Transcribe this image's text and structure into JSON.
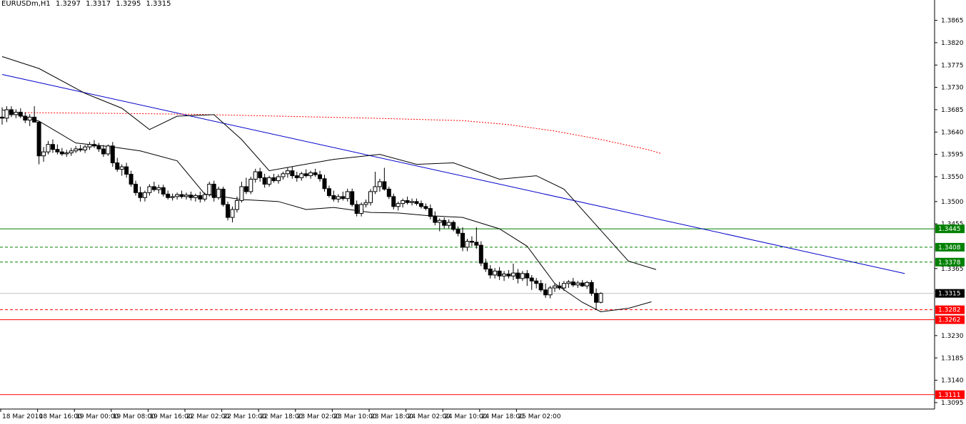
{
  "header": {
    "symbol": "EURUSDm,H1",
    "open": "1.3297",
    "high": "1.3317",
    "low": "1.3295",
    "close": "1.3315"
  },
  "chart_data": {
    "type": "candlestick",
    "symbol": "EURUSDm",
    "timeframe": "H1",
    "ylim": [
      1.3082,
      1.3906
    ],
    "y_ticks": [
      "1.3865",
      "1.3820",
      "1.3775",
      "1.3730",
      "1.3685",
      "1.3640",
      "1.3595",
      "1.3550",
      "1.3500",
      "1.3455",
      "1.3365",
      "1.3230",
      "1.3185",
      "1.3140",
      "1.3095"
    ],
    "x_ticks": [
      "18 Mar 2010",
      "18 Mar 16:00",
      "19 Mar 00:00",
      "19 Mar 08:00",
      "19 Mar 16:00",
      "22 Mar 02:00",
      "22 Mar 10:00",
      "22 Mar 18:00",
      "23 Mar 02:00",
      "23 Mar 10:00",
      "23 Mar 18:00",
      "24 Mar 02:00",
      "24 Mar 10:00",
      "24 Mar 18:00",
      "25 Mar 02:00"
    ],
    "horizontal_lines": [
      {
        "price": 1.3445,
        "label": "1.3445",
        "color": "#008000",
        "style": "solid"
      },
      {
        "price": 1.3408,
        "label": "1.3408",
        "color": "#008000",
        "style": "dashed"
      },
      {
        "price": 1.3378,
        "label": "1.3378",
        "color": "#008000",
        "style": "dashed"
      },
      {
        "price": 1.3282,
        "label": "1.3282",
        "color": "#ff0000",
        "style": "dashed"
      },
      {
        "price": 1.3262,
        "label": "1.3262",
        "color": "#ff0000",
        "style": "solid"
      },
      {
        "price": 1.3111,
        "label": "1.3111",
        "color": "#ff0000",
        "style": "solid"
      }
    ],
    "current_price": {
      "price": 1.3315,
      "label": "1.3315"
    },
    "trendline": {
      "start": {
        "bar": 0,
        "price": 1.3756
      },
      "end": {
        "bar": 196,
        "price": 1.3355
      },
      "color": "#0000cc"
    },
    "moving_average": {
      "color": "#ff0000",
      "style": "dotted",
      "points": [
        [
          5,
          1.3679
        ],
        [
          20,
          1.3678
        ],
        [
          40,
          1.3676
        ],
        [
          60,
          1.3672
        ],
        [
          80,
          1.3668
        ],
        [
          100,
          1.3663
        ],
        [
          110,
          1.3655
        ],
        [
          120,
          1.3642
        ],
        [
          130,
          1.3625
        ],
        [
          140,
          1.3605
        ],
        [
          143,
          1.3597
        ]
      ]
    },
    "bollinger_upper": [
      [
        0,
        1.3792
      ],
      [
        8,
        1.3768
      ],
      [
        18,
        1.3718
      ],
      [
        26,
        1.3688
      ],
      [
        32,
        1.3645
      ],
      [
        38,
        1.3672
      ],
      [
        46,
        1.3675
      ],
      [
        52,
        1.3625
      ],
      [
        58,
        1.3562
      ],
      [
        64,
        1.3572
      ],
      [
        72,
        1.3585
      ],
      [
        82,
        1.3595
      ],
      [
        90,
        1.3575
      ],
      [
        98,
        1.3578
      ],
      [
        108,
        1.3545
      ],
      [
        116,
        1.3552
      ],
      [
        122,
        1.3525
      ],
      [
        130,
        1.3442
      ],
      [
        136,
        1.338
      ],
      [
        142,
        1.3363
      ]
    ],
    "bollinger_lower": [
      [
        0,
        1.3685
      ],
      [
        8,
        1.3662
      ],
      [
        16,
        1.3618
      ],
      [
        24,
        1.361
      ],
      [
        30,
        1.3602
      ],
      [
        38,
        1.3582
      ],
      [
        44,
        1.3515
      ],
      [
        52,
        1.3504
      ],
      [
        60,
        1.35
      ],
      [
        66,
        1.3484
      ],
      [
        72,
        1.3488
      ],
      [
        80,
        1.3478
      ],
      [
        86,
        1.3477
      ],
      [
        92,
        1.3472
      ],
      [
        100,
        1.3468
      ],
      [
        108,
        1.3445
      ],
      [
        114,
        1.341
      ],
      [
        120,
        1.3335
      ],
      [
        126,
        1.3297
      ],
      [
        130,
        1.3278
      ],
      [
        136,
        1.3285
      ],
      [
        141,
        1.3298
      ]
    ],
    "candles": [
      {
        "o": 1.367,
        "h": 1.369,
        "l": 1.3655,
        "c": 1.3668
      },
      {
        "o": 1.3668,
        "h": 1.3692,
        "l": 1.366,
        "c": 1.3685
      },
      {
        "o": 1.3685,
        "h": 1.3692,
        "l": 1.367,
        "c": 1.3675
      },
      {
        "o": 1.3675,
        "h": 1.3686,
        "l": 1.3668,
        "c": 1.368
      },
      {
        "o": 1.368,
        "h": 1.3688,
        "l": 1.3668,
        "c": 1.3672
      },
      {
        "o": 1.3672,
        "h": 1.368,
        "l": 1.3658,
        "c": 1.3664
      },
      {
        "o": 1.3664,
        "h": 1.3676,
        "l": 1.3652,
        "c": 1.367
      },
      {
        "o": 1.367,
        "h": 1.3692,
        "l": 1.3665,
        "c": 1.366
      },
      {
        "o": 1.366,
        "h": 1.3662,
        "l": 1.3575,
        "c": 1.3592
      },
      {
        "o": 1.3592,
        "h": 1.361,
        "l": 1.358,
        "c": 1.36
      },
      {
        "o": 1.36,
        "h": 1.3622,
        "l": 1.3595,
        "c": 1.3615
      },
      {
        "o": 1.3615,
        "h": 1.3625,
        "l": 1.3598,
        "c": 1.3605
      },
      {
        "o": 1.3605,
        "h": 1.3615,
        "l": 1.3595,
        "c": 1.36
      },
      {
        "o": 1.36,
        "h": 1.3608,
        "l": 1.3592,
        "c": 1.3596
      },
      {
        "o": 1.3596,
        "h": 1.3604,
        "l": 1.359,
        "c": 1.3598
      },
      {
        "o": 1.3598,
        "h": 1.3608,
        "l": 1.3592,
        "c": 1.3602
      },
      {
        "o": 1.3602,
        "h": 1.3612,
        "l": 1.3598,
        "c": 1.3606
      },
      {
        "o": 1.3606,
        "h": 1.3614,
        "l": 1.36,
        "c": 1.3604
      },
      {
        "o": 1.3604,
        "h": 1.3614,
        "l": 1.3598,
        "c": 1.361
      },
      {
        "o": 1.361,
        "h": 1.362,
        "l": 1.3604,
        "c": 1.3615
      },
      {
        "o": 1.3615,
        "h": 1.3624,
        "l": 1.3608,
        "c": 1.3612
      },
      {
        "o": 1.3612,
        "h": 1.3618,
        "l": 1.36,
        "c": 1.3606
      },
      {
        "o": 1.3606,
        "h": 1.3614,
        "l": 1.359,
        "c": 1.3596
      },
      {
        "o": 1.3596,
        "h": 1.3615,
        "l": 1.3592,
        "c": 1.3612
      },
      {
        "o": 1.3612,
        "h": 1.362,
        "l": 1.357,
        "c": 1.3578
      },
      {
        "o": 1.3578,
        "h": 1.3588,
        "l": 1.356,
        "c": 1.3565
      },
      {
        "o": 1.3565,
        "h": 1.3575,
        "l": 1.3552,
        "c": 1.357
      },
      {
        "o": 1.357,
        "h": 1.3578,
        "l": 1.3548,
        "c": 1.3555
      },
      {
        "o": 1.3555,
        "h": 1.3562,
        "l": 1.353,
        "c": 1.3535
      },
      {
        "o": 1.3535,
        "h": 1.3542,
        "l": 1.3512,
        "c": 1.3518
      },
      {
        "o": 1.3518,
        "h": 1.353,
        "l": 1.35,
        "c": 1.3508
      },
      {
        "o": 1.3508,
        "h": 1.3522,
        "l": 1.35,
        "c": 1.3518
      },
      {
        "o": 1.3518,
        "h": 1.3535,
        "l": 1.3512,
        "c": 1.353
      },
      {
        "o": 1.353,
        "h": 1.354,
        "l": 1.352,
        "c": 1.3524
      },
      {
        "o": 1.3524,
        "h": 1.3534,
        "l": 1.3516,
        "c": 1.3528
      },
      {
        "o": 1.3528,
        "h": 1.3534,
        "l": 1.351,
        "c": 1.3515
      },
      {
        "o": 1.3515,
        "h": 1.3522,
        "l": 1.3504,
        "c": 1.3508
      },
      {
        "o": 1.3508,
        "h": 1.3516,
        "l": 1.3502,
        "c": 1.351
      },
      {
        "o": 1.351,
        "h": 1.3518,
        "l": 1.3504,
        "c": 1.3514
      },
      {
        "o": 1.3514,
        "h": 1.3522,
        "l": 1.3506,
        "c": 1.351
      },
      {
        "o": 1.351,
        "h": 1.3518,
        "l": 1.3504,
        "c": 1.3513
      },
      {
        "o": 1.3513,
        "h": 1.352,
        "l": 1.3502,
        "c": 1.3508
      },
      {
        "o": 1.3508,
        "h": 1.3516,
        "l": 1.35,
        "c": 1.3512
      },
      {
        "o": 1.3512,
        "h": 1.352,
        "l": 1.3498,
        "c": 1.3505
      },
      {
        "o": 1.3505,
        "h": 1.3518,
        "l": 1.35,
        "c": 1.3514
      },
      {
        "o": 1.3514,
        "h": 1.354,
        "l": 1.351,
        "c": 1.3535
      },
      {
        "o": 1.3535,
        "h": 1.3542,
        "l": 1.35,
        "c": 1.3508
      },
      {
        "o": 1.3508,
        "h": 1.353,
        "l": 1.3504,
        "c": 1.3525
      },
      {
        "o": 1.3525,
        "h": 1.353,
        "l": 1.349,
        "c": 1.3494
      },
      {
        "o": 1.3494,
        "h": 1.35,
        "l": 1.3462,
        "c": 1.3468
      },
      {
        "o": 1.3468,
        "h": 1.349,
        "l": 1.3458,
        "c": 1.3484
      },
      {
        "o": 1.3484,
        "h": 1.351,
        "l": 1.3478,
        "c": 1.3502
      },
      {
        "o": 1.3502,
        "h": 1.354,
        "l": 1.3498,
        "c": 1.353
      },
      {
        "o": 1.353,
        "h": 1.3548,
        "l": 1.3515,
        "c": 1.352
      },
      {
        "o": 1.352,
        "h": 1.355,
        "l": 1.3515,
        "c": 1.3545
      },
      {
        "o": 1.3545,
        "h": 1.3566,
        "l": 1.3538,
        "c": 1.356
      },
      {
        "o": 1.356,
        "h": 1.3568,
        "l": 1.354,
        "c": 1.3548
      },
      {
        "o": 1.3548,
        "h": 1.3556,
        "l": 1.3528,
        "c": 1.3535
      },
      {
        "o": 1.3535,
        "h": 1.3552,
        "l": 1.353,
        "c": 1.3548
      },
      {
        "o": 1.3548,
        "h": 1.3556,
        "l": 1.3538,
        "c": 1.3542
      },
      {
        "o": 1.3542,
        "h": 1.3555,
        "l": 1.3536,
        "c": 1.355
      },
      {
        "o": 1.355,
        "h": 1.356,
        "l": 1.3544,
        "c": 1.3556
      },
      {
        "o": 1.3556,
        "h": 1.3568,
        "l": 1.3548,
        "c": 1.3562
      },
      {
        "o": 1.3562,
        "h": 1.357,
        "l": 1.3546,
        "c": 1.3552
      },
      {
        "o": 1.3552,
        "h": 1.356,
        "l": 1.354,
        "c": 1.3548
      },
      {
        "o": 1.3548,
        "h": 1.356,
        "l": 1.3542,
        "c": 1.3556
      },
      {
        "o": 1.3556,
        "h": 1.3565,
        "l": 1.3548,
        "c": 1.3552
      },
      {
        "o": 1.3552,
        "h": 1.3562,
        "l": 1.3546,
        "c": 1.3558
      },
      {
        "o": 1.3558,
        "h": 1.3566,
        "l": 1.355,
        "c": 1.3554
      },
      {
        "o": 1.3554,
        "h": 1.3562,
        "l": 1.354,
        "c": 1.3546
      },
      {
        "o": 1.3546,
        "h": 1.3554,
        "l": 1.352,
        "c": 1.3526
      },
      {
        "o": 1.3526,
        "h": 1.3532,
        "l": 1.3508,
        "c": 1.3512
      },
      {
        "o": 1.3512,
        "h": 1.3522,
        "l": 1.35,
        "c": 1.3505
      },
      {
        "o": 1.3505,
        "h": 1.3515,
        "l": 1.3498,
        "c": 1.351
      },
      {
        "o": 1.351,
        "h": 1.352,
        "l": 1.3502,
        "c": 1.3506
      },
      {
        "o": 1.3506,
        "h": 1.3526,
        "l": 1.35,
        "c": 1.352
      },
      {
        "o": 1.352,
        "h": 1.3526,
        "l": 1.349,
        "c": 1.3494
      },
      {
        "o": 1.3494,
        "h": 1.3502,
        "l": 1.347,
        "c": 1.3476
      },
      {
        "o": 1.3476,
        "h": 1.3498,
        "l": 1.347,
        "c": 1.3494
      },
      {
        "o": 1.3494,
        "h": 1.3504,
        "l": 1.3488,
        "c": 1.3498
      },
      {
        "o": 1.3498,
        "h": 1.3525,
        "l": 1.3492,
        "c": 1.352
      },
      {
        "o": 1.352,
        "h": 1.356,
        "l": 1.3515,
        "c": 1.353
      },
      {
        "o": 1.353,
        "h": 1.3546,
        "l": 1.352,
        "c": 1.354
      },
      {
        "o": 1.354,
        "h": 1.3568,
        "l": 1.3522,
        "c": 1.3525
      },
      {
        "o": 1.3525,
        "h": 1.353,
        "l": 1.3505,
        "c": 1.351
      },
      {
        "o": 1.351,
        "h": 1.3516,
        "l": 1.3484,
        "c": 1.349
      },
      {
        "o": 1.349,
        "h": 1.35,
        "l": 1.3482,
        "c": 1.3496
      },
      {
        "o": 1.3496,
        "h": 1.3506,
        "l": 1.3488,
        "c": 1.3502
      },
      {
        "o": 1.3502,
        "h": 1.351,
        "l": 1.3494,
        "c": 1.3498
      },
      {
        "o": 1.3498,
        "h": 1.3506,
        "l": 1.3492,
        "c": 1.35
      },
      {
        "o": 1.35,
        "h": 1.3506,
        "l": 1.3492,
        "c": 1.3496
      },
      {
        "o": 1.3496,
        "h": 1.3502,
        "l": 1.3486,
        "c": 1.349
      },
      {
        "o": 1.349,
        "h": 1.3496,
        "l": 1.3482,
        "c": 1.3486
      },
      {
        "o": 1.3486,
        "h": 1.3494,
        "l": 1.3464,
        "c": 1.347
      },
      {
        "o": 1.347,
        "h": 1.348,
        "l": 1.3452,
        "c": 1.3458
      },
      {
        "o": 1.3458,
        "h": 1.3466,
        "l": 1.344,
        "c": 1.3462
      },
      {
        "o": 1.3462,
        "h": 1.3468,
        "l": 1.3446,
        "c": 1.3452
      },
      {
        "o": 1.3452,
        "h": 1.3464,
        "l": 1.3446,
        "c": 1.3458
      },
      {
        "o": 1.3458,
        "h": 1.3462,
        "l": 1.344,
        "c": 1.3444
      },
      {
        "o": 1.3444,
        "h": 1.345,
        "l": 1.343,
        "c": 1.3436
      },
      {
        "o": 1.3436,
        "h": 1.3448,
        "l": 1.34,
        "c": 1.3408
      },
      {
        "o": 1.3408,
        "h": 1.3425,
        "l": 1.34,
        "c": 1.342
      },
      {
        "o": 1.342,
        "h": 1.343,
        "l": 1.341,
        "c": 1.3418
      },
      {
        "o": 1.3418,
        "h": 1.3448,
        "l": 1.3405,
        "c": 1.3412
      },
      {
        "o": 1.3412,
        "h": 1.342,
        "l": 1.337,
        "c": 1.3376
      },
      {
        "o": 1.3376,
        "h": 1.3385,
        "l": 1.3358,
        "c": 1.3364
      },
      {
        "o": 1.3364,
        "h": 1.3372,
        "l": 1.3345,
        "c": 1.3352
      },
      {
        "o": 1.3352,
        "h": 1.3366,
        "l": 1.3345,
        "c": 1.336
      },
      {
        "o": 1.336,
        "h": 1.3368,
        "l": 1.3342,
        "c": 1.335
      },
      {
        "o": 1.335,
        "h": 1.336,
        "l": 1.334,
        "c": 1.3354
      },
      {
        "o": 1.3354,
        "h": 1.3362,
        "l": 1.3345,
        "c": 1.335
      },
      {
        "o": 1.335,
        "h": 1.3375,
        "l": 1.3342,
        "c": 1.3356
      },
      {
        "o": 1.3356,
        "h": 1.3364,
        "l": 1.3335,
        "c": 1.3345
      },
      {
        "o": 1.3345,
        "h": 1.336,
        "l": 1.334,
        "c": 1.3355
      },
      {
        "o": 1.3355,
        "h": 1.3362,
        "l": 1.333,
        "c": 1.3346
      },
      {
        "o": 1.3346,
        "h": 1.3352,
        "l": 1.3322,
        "c": 1.334
      },
      {
        "o": 1.334,
        "h": 1.3346,
        "l": 1.3325,
        "c": 1.3335
      },
      {
        "o": 1.3335,
        "h": 1.3342,
        "l": 1.3318,
        "c": 1.3322
      },
      {
        "o": 1.3322,
        "h": 1.3335,
        "l": 1.3306,
        "c": 1.3312
      },
      {
        "o": 1.3312,
        "h": 1.333,
        "l": 1.3305,
        "c": 1.3326
      },
      {
        "o": 1.3326,
        "h": 1.3334,
        "l": 1.3318,
        "c": 1.333
      },
      {
        "o": 1.333,
        "h": 1.3338,
        "l": 1.3322,
        "c": 1.3326
      },
      {
        "o": 1.3326,
        "h": 1.334,
        "l": 1.332,
        "c": 1.3335
      },
      {
        "o": 1.3335,
        "h": 1.3342,
        "l": 1.3326,
        "c": 1.3338
      },
      {
        "o": 1.3338,
        "h": 1.3346,
        "l": 1.3328,
        "c": 1.3332
      },
      {
        "o": 1.3332,
        "h": 1.334,
        "l": 1.3326,
        "c": 1.3336
      },
      {
        "o": 1.3336,
        "h": 1.3342,
        "l": 1.3328,
        "c": 1.333
      },
      {
        "o": 1.333,
        "h": 1.334,
        "l": 1.3324,
        "c": 1.3337
      },
      {
        "o": 1.3337,
        "h": 1.3342,
        "l": 1.331,
        "c": 1.3315
      },
      {
        "o": 1.3315,
        "h": 1.3325,
        "l": 1.3282,
        "c": 1.3297
      },
      {
        "o": 1.3297,
        "h": 1.3317,
        "l": 1.3295,
        "c": 1.3315
      }
    ]
  }
}
